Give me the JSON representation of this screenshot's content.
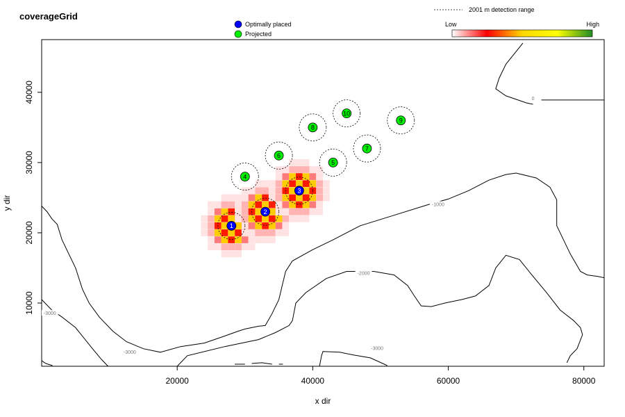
{
  "chart_data": {
    "type": "scatter",
    "title": "coverageGrid",
    "xlabel": "x dir",
    "ylabel": "y dir",
    "xlim": [
      0,
      83000
    ],
    "ylim": [
      1000,
      47500
    ],
    "x_ticks": [
      20000,
      40000,
      60000,
      80000
    ],
    "y_ticks": [
      10000,
      20000,
      30000,
      40000
    ],
    "x_tick_labels": [
      "20000",
      "40000",
      "60000",
      "80000"
    ],
    "y_tick_labels": [
      "10000",
      "20000",
      "30000",
      "40000"
    ],
    "grid": false,
    "detection_range_m": 2001,
    "legend": {
      "placement": "top-center",
      "items": [
        {
          "label": "Optimally placed",
          "color": "#0000ff"
        },
        {
          "label": "Projected",
          "color": "#00ee00"
        }
      ],
      "range_label": "2001 m detection range"
    },
    "colorbar": {
      "placement": "top-right",
      "low_label": "Low",
      "high_label": "High",
      "stops": [
        "#ffffff",
        "#ff0000",
        "#ffd700",
        "#ffff00",
        "#228b22"
      ]
    },
    "series": [
      {
        "name": "Optimally placed",
        "color": "#0000ff",
        "points": [
          {
            "id": "1",
            "x": 28000,
            "y": 21000
          },
          {
            "id": "2",
            "x": 33000,
            "y": 23000
          },
          {
            "id": "3",
            "x": 38000,
            "y": 26000
          }
        ]
      },
      {
        "name": "Projected",
        "color": "#00ee00",
        "points": [
          {
            "id": "4",
            "x": 30000,
            "y": 28000
          },
          {
            "id": "5",
            "x": 43000,
            "y": 30000
          },
          {
            "id": "6",
            "x": 35000,
            "y": 31000
          },
          {
            "id": "7",
            "x": 48000,
            "y": 32000
          },
          {
            "id": "8",
            "x": 40000,
            "y": 35000
          },
          {
            "id": "9",
            "x": 53000,
            "y": 36000
          },
          {
            "id": "10",
            "x": 45000,
            "y": 37000
          }
        ]
      }
    ],
    "contours": [
      {
        "label": "0",
        "label_at": [
          72500,
          39100
        ],
        "points": [
          [
            71000,
            47000
          ],
          [
            68500,
            44000
          ],
          [
            67500,
            42000
          ],
          [
            67000,
            40500
          ],
          [
            68500,
            39500
          ],
          [
            70000,
            39000
          ],
          [
            71500,
            38500
          ],
          [
            72500,
            38300
          ]
        ]
      },
      {
        "label": "0",
        "label_at": [
          72500,
          39100
        ],
        "points": [
          [
            73000,
            38900
          ],
          [
            83000,
            38900
          ]
        ]
      },
      {
        "label": "-1000",
        "label_at": [
          58500,
          24000
        ],
        "points": [
          [
            0,
            23800
          ],
          [
            800,
            23000
          ],
          [
            1500,
            22000
          ],
          [
            2300,
            21200
          ],
          [
            3000,
            19000
          ],
          [
            4000,
            17000
          ],
          [
            5000,
            15000
          ],
          [
            6000,
            12000
          ],
          [
            7000,
            10000
          ],
          [
            8500,
            8000
          ],
          [
            10500,
            6000
          ],
          [
            12500,
            4500
          ],
          [
            15000,
            3500
          ],
          [
            17500,
            3000
          ],
          [
            20500,
            3800
          ],
          [
            24000,
            4300
          ],
          [
            27000,
            5300
          ],
          [
            29000,
            6000
          ],
          [
            30000,
            6300
          ],
          [
            32000,
            6700
          ],
          [
            33000,
            6800
          ],
          [
            34000,
            8500
          ],
          [
            35000,
            10500
          ],
          [
            35500,
            12500
          ],
          [
            36000,
            14500
          ],
          [
            37000,
            16000
          ],
          [
            40000,
            17600
          ],
          [
            43000,
            19000
          ],
          [
            47000,
            21000
          ],
          [
            52000,
            22500
          ],
          [
            57000,
            24000
          ],
          [
            60000,
            24800
          ],
          [
            63000,
            26000
          ],
          [
            66000,
            27500
          ],
          [
            68500,
            28300
          ],
          [
            70000,
            28500
          ],
          [
            73000,
            27800
          ],
          [
            75000,
            26500
          ],
          [
            76000,
            24700
          ],
          [
            76000,
            22200
          ],
          [
            76000,
            21000
          ],
          [
            78000,
            17000
          ],
          [
            79500,
            14500
          ],
          [
            80500,
            14000
          ],
          [
            82000,
            13800
          ],
          [
            83000,
            13600
          ]
        ]
      },
      {
        "label": "-2000",
        "label_at": [
          47500,
          14200
        ],
        "points": [
          [
            20000,
            1000
          ],
          [
            21500,
            2500
          ],
          [
            27000,
            3800
          ],
          [
            32000,
            4800
          ],
          [
            34500,
            5800
          ],
          [
            36500,
            6800
          ],
          [
            37000,
            7500
          ],
          [
            37500,
            10000
          ],
          [
            39000,
            11500
          ],
          [
            42000,
            13500
          ],
          [
            45000,
            14500
          ],
          [
            49000,
            14500
          ],
          [
            52000,
            14000
          ],
          [
            54000,
            12500
          ],
          [
            55000,
            11000
          ],
          [
            56000,
            9600
          ],
          [
            57500,
            9500
          ],
          [
            59500,
            10000
          ],
          [
            62000,
            10500
          ],
          [
            64000,
            11000
          ],
          [
            66000,
            12500
          ],
          [
            67000,
            15000
          ],
          [
            68500,
            16800
          ],
          [
            70500,
            16200
          ],
          [
            72500,
            13800
          ],
          [
            74500,
            11500
          ],
          [
            76500,
            9000
          ],
          [
            78500,
            7500
          ],
          [
            79500,
            6500
          ],
          [
            79800,
            5500
          ],
          [
            79000,
            3500
          ],
          [
            78000,
            2500
          ],
          [
            77500,
            1500
          ]
        ]
      },
      {
        "label": "-3000",
        "label_at": [
          13000,
          3000
        ],
        "points": [
          [
            0,
            10500
          ],
          [
            1500,
            9000
          ],
          [
            3000,
            8000
          ],
          [
            5000,
            6500
          ],
          [
            7500,
            3500
          ],
          [
            8800,
            2000
          ],
          [
            9800,
            1000
          ]
        ]
      },
      {
        "label": "-3000",
        "label_at": [
          1200,
          8500
        ],
        "points": [
          [
            0,
            1800
          ],
          [
            600,
            1400
          ],
          [
            1600,
            1100
          ]
        ]
      },
      {
        "label": "-3000",
        "label_at": [
          49500,
          3500
        ],
        "points": [
          [
            41000,
            1000
          ],
          [
            41300,
            2500
          ],
          [
            41500,
            3100
          ],
          [
            44000,
            3000
          ],
          [
            46000,
            2600
          ],
          [
            48500,
            2200
          ],
          [
            51000,
            1100
          ]
        ]
      },
      {
        "label": "",
        "label_at": [
          0,
          0
        ],
        "points": [
          [
            28500,
            1300
          ],
          [
            30000,
            1300
          ]
        ]
      },
      {
        "label": "",
        "label_at": [
          0,
          0
        ],
        "points": [
          [
            31000,
            1400
          ],
          [
            32500,
            1500
          ],
          [
            34000,
            1300
          ]
        ]
      },
      {
        "label": "",
        "label_at": [
          0,
          0
        ],
        "points": [
          [
            35000,
            1300
          ],
          [
            35600,
            1300
          ]
        ]
      }
    ]
  }
}
